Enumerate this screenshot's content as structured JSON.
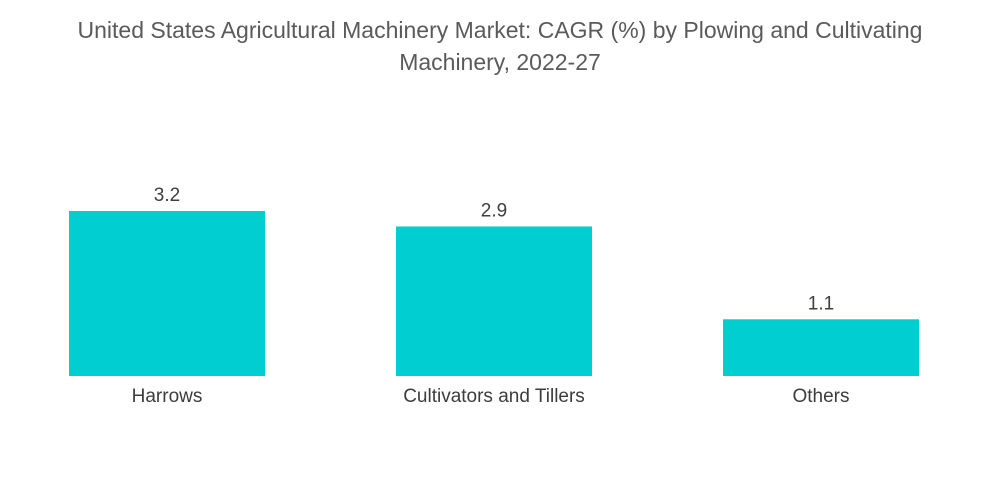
{
  "chart_data": {
    "type": "bar",
    "title": "United States Agricultural Machinery Market: CAGR (%) by Plowing and Cultivating Machinery, 2022-27",
    "categories": [
      "Harrows",
      "Cultivators and Tillers",
      "Others"
    ],
    "values": [
      3.2,
      2.9,
      1.1
    ],
    "data_labels": [
      "3.2",
      "2.9",
      "1.1"
    ],
    "xlabel": "",
    "ylabel": "",
    "ylim": [
      0,
      3.2
    ],
    "grid": false,
    "legend": "none",
    "colors": {
      "bar": "#00CED1"
    }
  }
}
